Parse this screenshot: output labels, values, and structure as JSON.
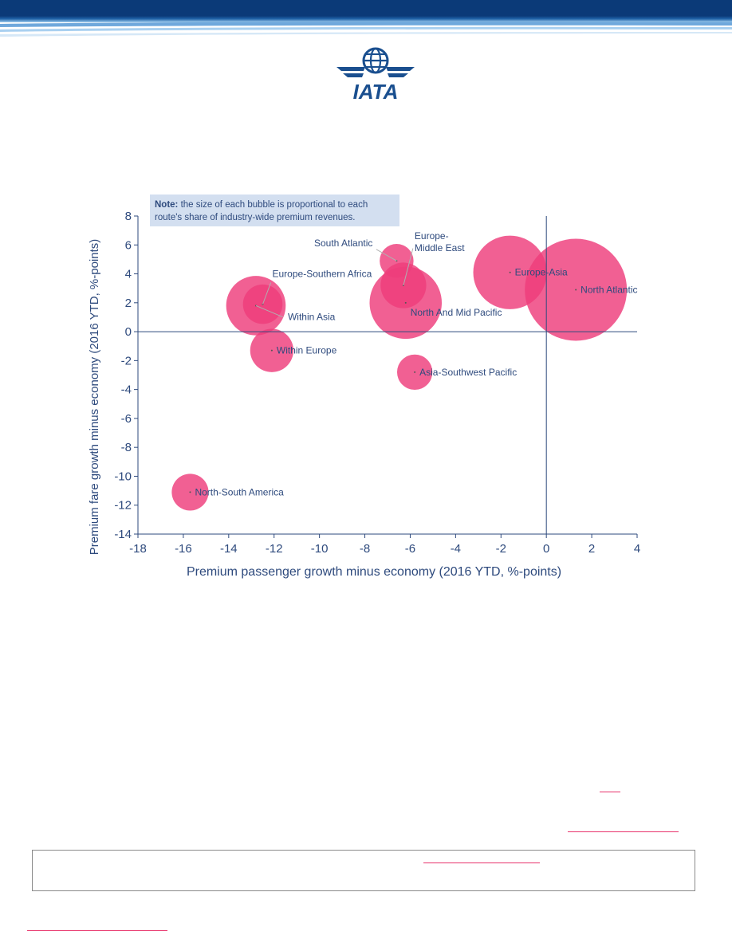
{
  "logo": {
    "text": "IATA",
    "color": "#1a4f8f"
  },
  "colors": {
    "bubble": "#ee3d7b",
    "axis_text": "#2e4a7d",
    "link": "#e8336b",
    "note_bg": "#d3dff0"
  },
  "chart_data": {
    "type": "scatter",
    "xlabel": "Premium passenger growth minus economy (2016 YTD, %-points)",
    "ylabel": "Premium fare growth minus economy (2016 YTD, %-points)",
    "xlim": [
      -18,
      4
    ],
    "ylim": [
      -14,
      8
    ],
    "xticks": [
      "-18",
      "-16",
      "-14",
      "-12",
      "-10",
      "-8",
      "-6",
      "-4",
      "-2",
      "0",
      "2",
      "4"
    ],
    "yticks": [
      "8",
      "6",
      "4",
      "2",
      "0",
      "-2",
      "-4",
      "-6",
      "-8",
      "-10",
      "-12",
      "-14"
    ],
    "grid": false,
    "note_bold": "Note:",
    "note_line1": " the size of each bubble is proportional to each",
    "note_line2": "route's share of industry-wide premium revenues.",
    "points": [
      {
        "label": "North Atlantic",
        "x": 1.3,
        "y": 2.9,
        "size": 100
      },
      {
        "label": "Europe-Asia",
        "x": -1.6,
        "y": 4.1,
        "size": 52
      },
      {
        "label": "North And Mid Pacific",
        "x": -6.2,
        "y": 2.0,
        "size": 50
      },
      {
        "label": "Europe-Middle East",
        "x": -6.3,
        "y": 3.2,
        "size": 20
      },
      {
        "label": "South Atlantic",
        "x": -6.6,
        "y": 4.9,
        "size": 11
      },
      {
        "label": "Within Asia",
        "x": -12.8,
        "y": 1.8,
        "size": 34
      },
      {
        "label": "Europe-Southern Africa",
        "x": -12.5,
        "y": 1.9,
        "size": 15
      },
      {
        "label": "Within Europe",
        "x": -12.1,
        "y": -1.3,
        "size": 18
      },
      {
        "label": "Asia-Southwest Pacific",
        "x": -5.8,
        "y": -2.8,
        "size": 12
      },
      {
        "label": "North-South America",
        "x": -15.7,
        "y": -11.1,
        "size": 13
      }
    ]
  }
}
